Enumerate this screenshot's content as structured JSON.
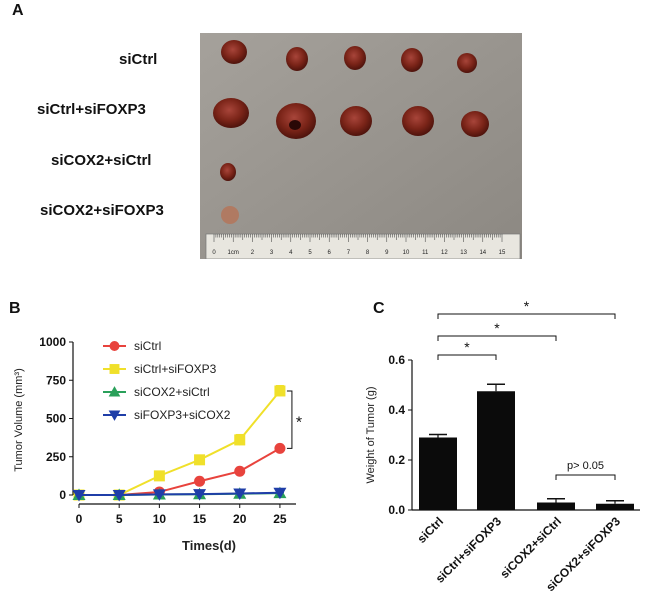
{
  "figure": {
    "panel_a": {
      "letter": "A",
      "groups": [
        "siCtrl",
        "siCtrl+siFOXP3",
        "siCOX2+siCtrl",
        "siCOX2+siFOXP3"
      ],
      "ruler_labels": [
        "0",
        "1cm",
        "2",
        "3",
        "4",
        "5",
        "6",
        "7",
        "8",
        "9",
        "10",
        "11",
        "12",
        "13",
        "14",
        "15"
      ],
      "colors": {
        "background": "#9a9690",
        "tumor": "#7a2418",
        "ruler": "#e8e6df"
      }
    },
    "panel_b": {
      "letter": "B"
    },
    "panel_c": {
      "letter": "C"
    }
  },
  "chart_data": [
    {
      "type": "line",
      "ylabel": "Tumor Volume (mm³)",
      "xlabel": "Times(d)",
      "x": [
        0,
        5,
        10,
        15,
        20,
        25
      ],
      "xticks": [
        "0",
        "5",
        "10",
        "15",
        "20",
        "25"
      ],
      "yticks": [
        "0",
        "250",
        "500",
        "750",
        "1000"
      ],
      "xlim": [
        0,
        27
      ],
      "ylim": [
        0,
        1000
      ],
      "legend_position": "top-right",
      "grid": false,
      "series": [
        {
          "name": "siCtrl",
          "color": "#e8433d",
          "marker": "circle",
          "values": [
            0,
            0,
            20,
            90,
            155,
            305
          ],
          "errors": [
            0,
            0,
            5,
            10,
            15,
            15
          ]
        },
        {
          "name": "siCtrl+siFOXP3",
          "color": "#f0e02a",
          "marker": "square",
          "values": [
            0,
            0,
            125,
            230,
            360,
            680
          ],
          "errors": [
            0,
            0,
            15,
            30,
            35,
            35
          ]
        },
        {
          "name": "siCOX2+siCtrl",
          "color": "#2aa05a",
          "marker": "triangle-up",
          "values": [
            0,
            0,
            3,
            5,
            8,
            12
          ],
          "errors": [
            0,
            0,
            2,
            2,
            2,
            3
          ]
        },
        {
          "name": "siFOXP3+siCOX2",
          "color": "#1f3ea8",
          "marker": "triangle-down",
          "values": [
            0,
            0,
            4,
            6,
            10,
            15
          ],
          "errors": [
            0,
            0,
            2,
            2,
            2,
            3
          ]
        }
      ],
      "annotations": [
        {
          "text": "*"
        }
      ]
    },
    {
      "type": "bar",
      "ylabel": "Weight of Tumor (g)",
      "categories": [
        "siCtrl",
        "siCtrl+siFOXP3",
        "siCOX2+siCtrl",
        "siCOX2+siFOXP3"
      ],
      "values": [
        0.29,
        0.475,
        0.03,
        0.025
      ],
      "errors": [
        0.012,
        0.028,
        0.015,
        0.012
      ],
      "yticks": [
        "0.0",
        "0.2",
        "0.4",
        "0.6"
      ],
      "ylim": [
        0,
        0.6
      ],
      "grid": false,
      "bar_color": "#0b0b0b",
      "significance": [
        {
          "from": 0,
          "to": 1,
          "label": "*"
        },
        {
          "from": 0,
          "to": 2,
          "label": "*"
        },
        {
          "from": 0,
          "to": 3,
          "label": "*"
        },
        {
          "from": 2,
          "to": 3,
          "label": "p> 0.05"
        }
      ]
    }
  ]
}
